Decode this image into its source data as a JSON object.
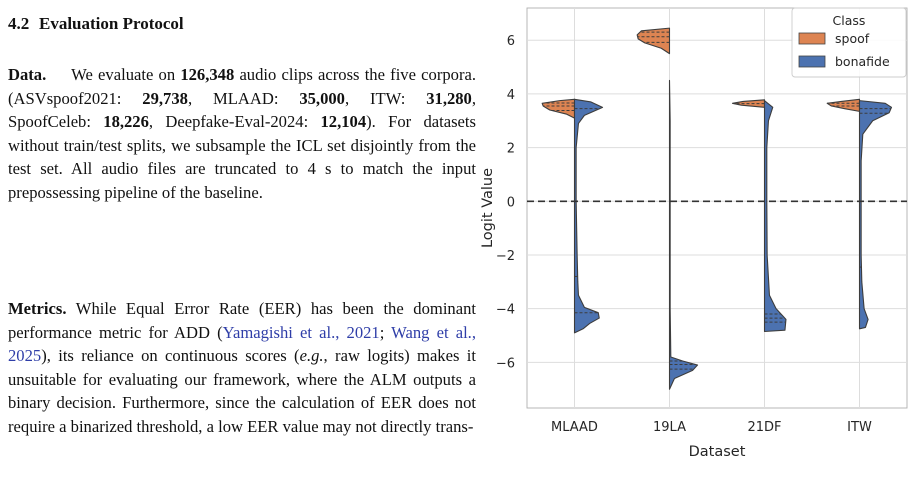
{
  "section": {
    "number": "4.2",
    "title": "Evaluation Protocol"
  },
  "data_para": {
    "label": "Data.",
    "t1": " We evaluate on ",
    "total": "126,348",
    "t2": " audio clips across the five corpora. (ASVspoof2021: ",
    "asv": "29,738",
    "t3": ", MLAAD: ",
    "mlaad": "35,000",
    "t4": ", ITW: ",
    "itw": "31,280",
    "t5": ", SpoofCeleb: ",
    "spoofceleb": "18,226",
    "t6": ", Deepfake-Eval-2024: ",
    "deepfake": "12,104",
    "t7": "). For datasets without train/test splits, we subsample the ICL set disjointly from the test set. All audio files are truncated to 4 s to match the input prepossessing pipeline of the baseline."
  },
  "metrics_para": {
    "label": "Metrics.",
    "t1": " While Equal Error Rate (EER) has been the dominant performance metric for ADD (",
    "cite1": "Yamagishi et al., 2021",
    "sep": "; ",
    "cite2": "Wang et al., 2025",
    "t2": "), its reliance on continuous scores (",
    "eg": "e.g.",
    "t3": ", raw logits) makes it unsuitable for evaluating our framework, where the ALM outputs a binary decision. Furthermore, since the calculation of EER does not require a binarized threshold, a low EER value may not directly trans-"
  },
  "chart_data": {
    "type": "violin",
    "xlabel": "Dataset",
    "ylabel": "Logit Value",
    "categories": [
      "MLAAD",
      "19LA",
      "21DF",
      "ITW"
    ],
    "ylim": [
      -7.7,
      7.2
    ],
    "yticks": [
      -6,
      -4,
      -2,
      0,
      2,
      4,
      6
    ],
    "reference_line": 0,
    "legend": {
      "title": "Class",
      "placement": "upper right",
      "entries": [
        {
          "label": "spoof",
          "color": "#dd8452"
        },
        {
          "label": "bonafide",
          "color": "#4c72b0"
        }
      ]
    },
    "series": [
      {
        "name": "spoof",
        "side": "left",
        "color": "#dd8452",
        "violins": [
          {
            "category": "MLAAD",
            "profile": [
              [
                3.1,
                0
              ],
              [
                3.25,
                0.25
              ],
              [
                3.4,
                0.75
              ],
              [
                3.55,
                0.95
              ],
              [
                3.65,
                0.98
              ],
              [
                3.75,
                0.45
              ],
              [
                3.8,
                0
              ]
            ],
            "quartiles": [
              3.38,
              3.55,
              3.66
            ]
          },
          {
            "category": "19LA",
            "profile": [
              [
                5.5,
                0
              ],
              [
                5.7,
                0.25
              ],
              [
                5.9,
                0.75
              ],
              [
                6.05,
                0.95
              ],
              [
                6.2,
                0.98
              ],
              [
                6.35,
                0.85
              ],
              [
                6.45,
                0
              ]
            ],
            "quartiles": [
              5.92,
              6.13,
              6.3
            ]
          },
          {
            "category": "21DF",
            "profile": [
              [
                3.5,
                0
              ],
              [
                3.58,
                0.7
              ],
              [
                3.65,
                0.97
              ],
              [
                3.72,
                0.65
              ],
              [
                3.78,
                0
              ]
            ],
            "quartiles": [
              3.64
            ]
          },
          {
            "category": "ITW",
            "profile": [
              [
                3.35,
                0
              ],
              [
                3.45,
                0.45
              ],
              [
                3.55,
                0.85
              ],
              [
                3.65,
                0.98
              ],
              [
                3.72,
                0.55
              ],
              [
                3.8,
                0
              ]
            ],
            "quartiles": [
              3.55,
              3.65
            ]
          }
        ]
      },
      {
        "name": "bonafide",
        "side": "right",
        "color": "#4c72b0",
        "violins": [
          {
            "category": "MLAAD",
            "profile": [
              [
                -4.9,
                0
              ],
              [
                -4.75,
                0.26
              ],
              [
                -4.55,
                0.46
              ],
              [
                -4.35,
                0.75
              ],
              [
                -4.15,
                0.72
              ],
              [
                -3.95,
                0.3
              ],
              [
                -3.5,
                0.12
              ],
              [
                -3.0,
                0.1
              ],
              [
                -2.0,
                0.08
              ],
              [
                0.0,
                0.05
              ],
              [
                2.0,
                0.05
              ],
              [
                2.9,
                0.12
              ],
              [
                3.2,
                0.3
              ],
              [
                3.5,
                0.85
              ],
              [
                3.7,
                0.5
              ],
              [
                3.8,
                0
              ]
            ],
            "quartiles": [
              -4.15,
              -2.8,
              3.45
            ]
          },
          {
            "category": "19LA",
            "profile": [
              [
                -7.0,
                0
              ],
              [
                -6.6,
                0.15
              ],
              [
                -6.3,
                0.7
              ],
              [
                -6.1,
                0.85
              ],
              [
                -5.95,
                0.4
              ],
              [
                -5.8,
                0.04
              ],
              [
                -4.0,
                0.02
              ],
              [
                0.0,
                0.02
              ],
              [
                3.0,
                0.02
              ],
              [
                4.5,
                0
              ]
            ],
            "quartiles": [
              -6.25,
              -6.08,
              -5.95
            ]
          },
          {
            "category": "21DF",
            "profile": [
              [
                -4.85,
                0
              ],
              [
                -4.8,
                0.62
              ],
              [
                -4.4,
                0.65
              ],
              [
                -4.0,
                0.35
              ],
              [
                -3.5,
                0.15
              ],
              [
                -2.0,
                0.08
              ],
              [
                0.0,
                0.07
              ],
              [
                2.0,
                0.07
              ],
              [
                3.0,
                0.12
              ],
              [
                3.5,
                0.25
              ],
              [
                3.75,
                0
              ]
            ],
            "quartiles": [
              -4.5,
              -4.35,
              -4.2
            ]
          },
          {
            "category": "ITW",
            "profile": [
              [
                -4.75,
                0
              ],
              [
                -4.7,
                0.18
              ],
              [
                -4.4,
                0.26
              ],
              [
                -4.0,
                0.14
              ],
              [
                -3.0,
                0.07
              ],
              [
                -2.0,
                0.05
              ],
              [
                0.0,
                0.05
              ],
              [
                1.5,
                0.05
              ],
              [
                2.5,
                0.1
              ],
              [
                3.0,
                0.4
              ],
              [
                3.3,
                0.9
              ],
              [
                3.5,
                0.97
              ],
              [
                3.65,
                0.78
              ],
              [
                3.75,
                0
              ]
            ],
            "quartiles": [
              -2.45,
              3.28,
              3.45
            ]
          }
        ]
      }
    ]
  }
}
